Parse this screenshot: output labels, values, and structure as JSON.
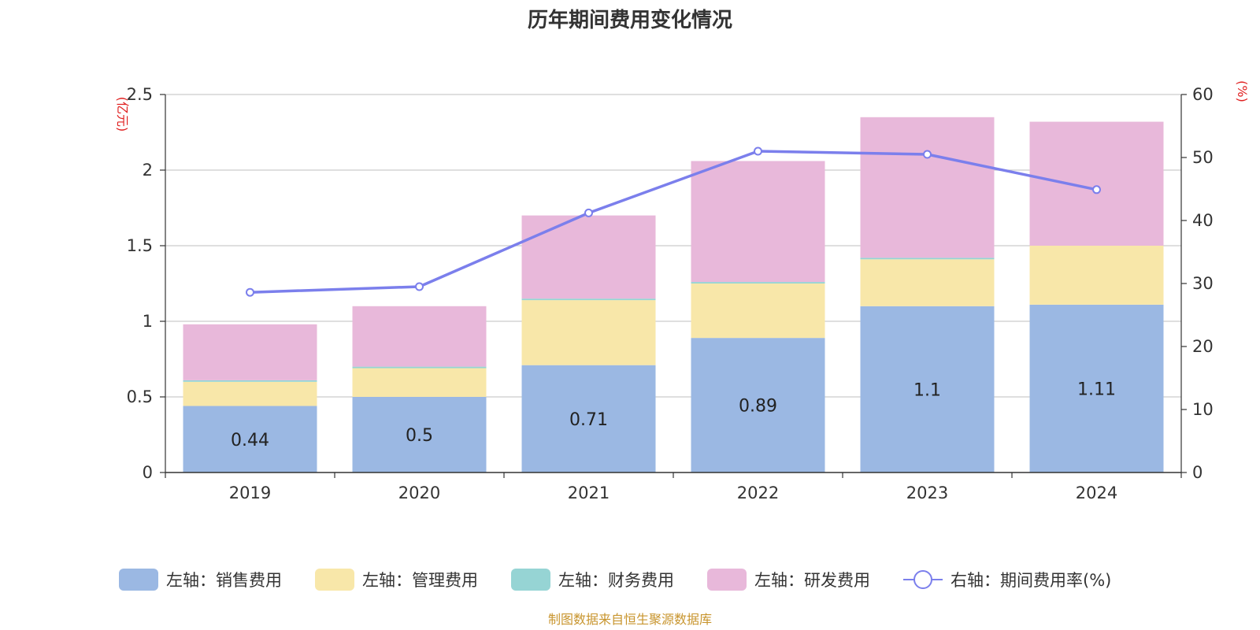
{
  "chart_data": {
    "type": "bar",
    "stacked": true,
    "title": "历年期间费用变化情况",
    "categories": [
      "2019",
      "2020",
      "2021",
      "2022",
      "2023",
      "2024"
    ],
    "left_axis": {
      "unit": "(亿元)",
      "ylim": [
        0,
        2.5
      ],
      "ticks": [
        "0",
        "0.5",
        "1",
        "1.5",
        "2",
        "2.5"
      ]
    },
    "right_axis": {
      "unit": "(%)",
      "ylim": [
        0,
        60
      ],
      "ticks": [
        "0",
        "10",
        "20",
        "30",
        "40",
        "50",
        "60"
      ]
    },
    "series": [
      {
        "name": "左轴：销售费用",
        "axis": "left",
        "type": "bar",
        "color": "#9bb8e3",
        "values": [
          0.44,
          0.5,
          0.71,
          0.89,
          1.1,
          1.11
        ],
        "labels": [
          "0.44",
          "0.5",
          "0.71",
          "0.89",
          "1.1",
          "1.11"
        ]
      },
      {
        "name": "左轴：管理费用",
        "axis": "left",
        "type": "bar",
        "color": "#f8e7a9",
        "values": [
          0.16,
          0.19,
          0.43,
          0.36,
          0.31,
          0.39
        ]
      },
      {
        "name": "左轴：财务费用",
        "axis": "left",
        "type": "bar",
        "color": "#96d4d4",
        "values": [
          0.01,
          0.01,
          0.01,
          0.01,
          0.01,
          0.0
        ]
      },
      {
        "name": "左轴：研发费用",
        "axis": "left",
        "type": "bar",
        "color": "#e8b8da",
        "values": [
          0.37,
          0.4,
          0.55,
          0.8,
          0.93,
          0.82
        ]
      },
      {
        "name": "右轴：期间费用率(%)",
        "axis": "right",
        "type": "line",
        "color": "#7b7fec",
        "values": [
          28.6,
          29.5,
          41.2,
          51.0,
          50.5,
          44.9
        ]
      }
    ],
    "grid": true,
    "legend_position": "bottom",
    "source": "制图数据来自恒生聚源数据库"
  }
}
